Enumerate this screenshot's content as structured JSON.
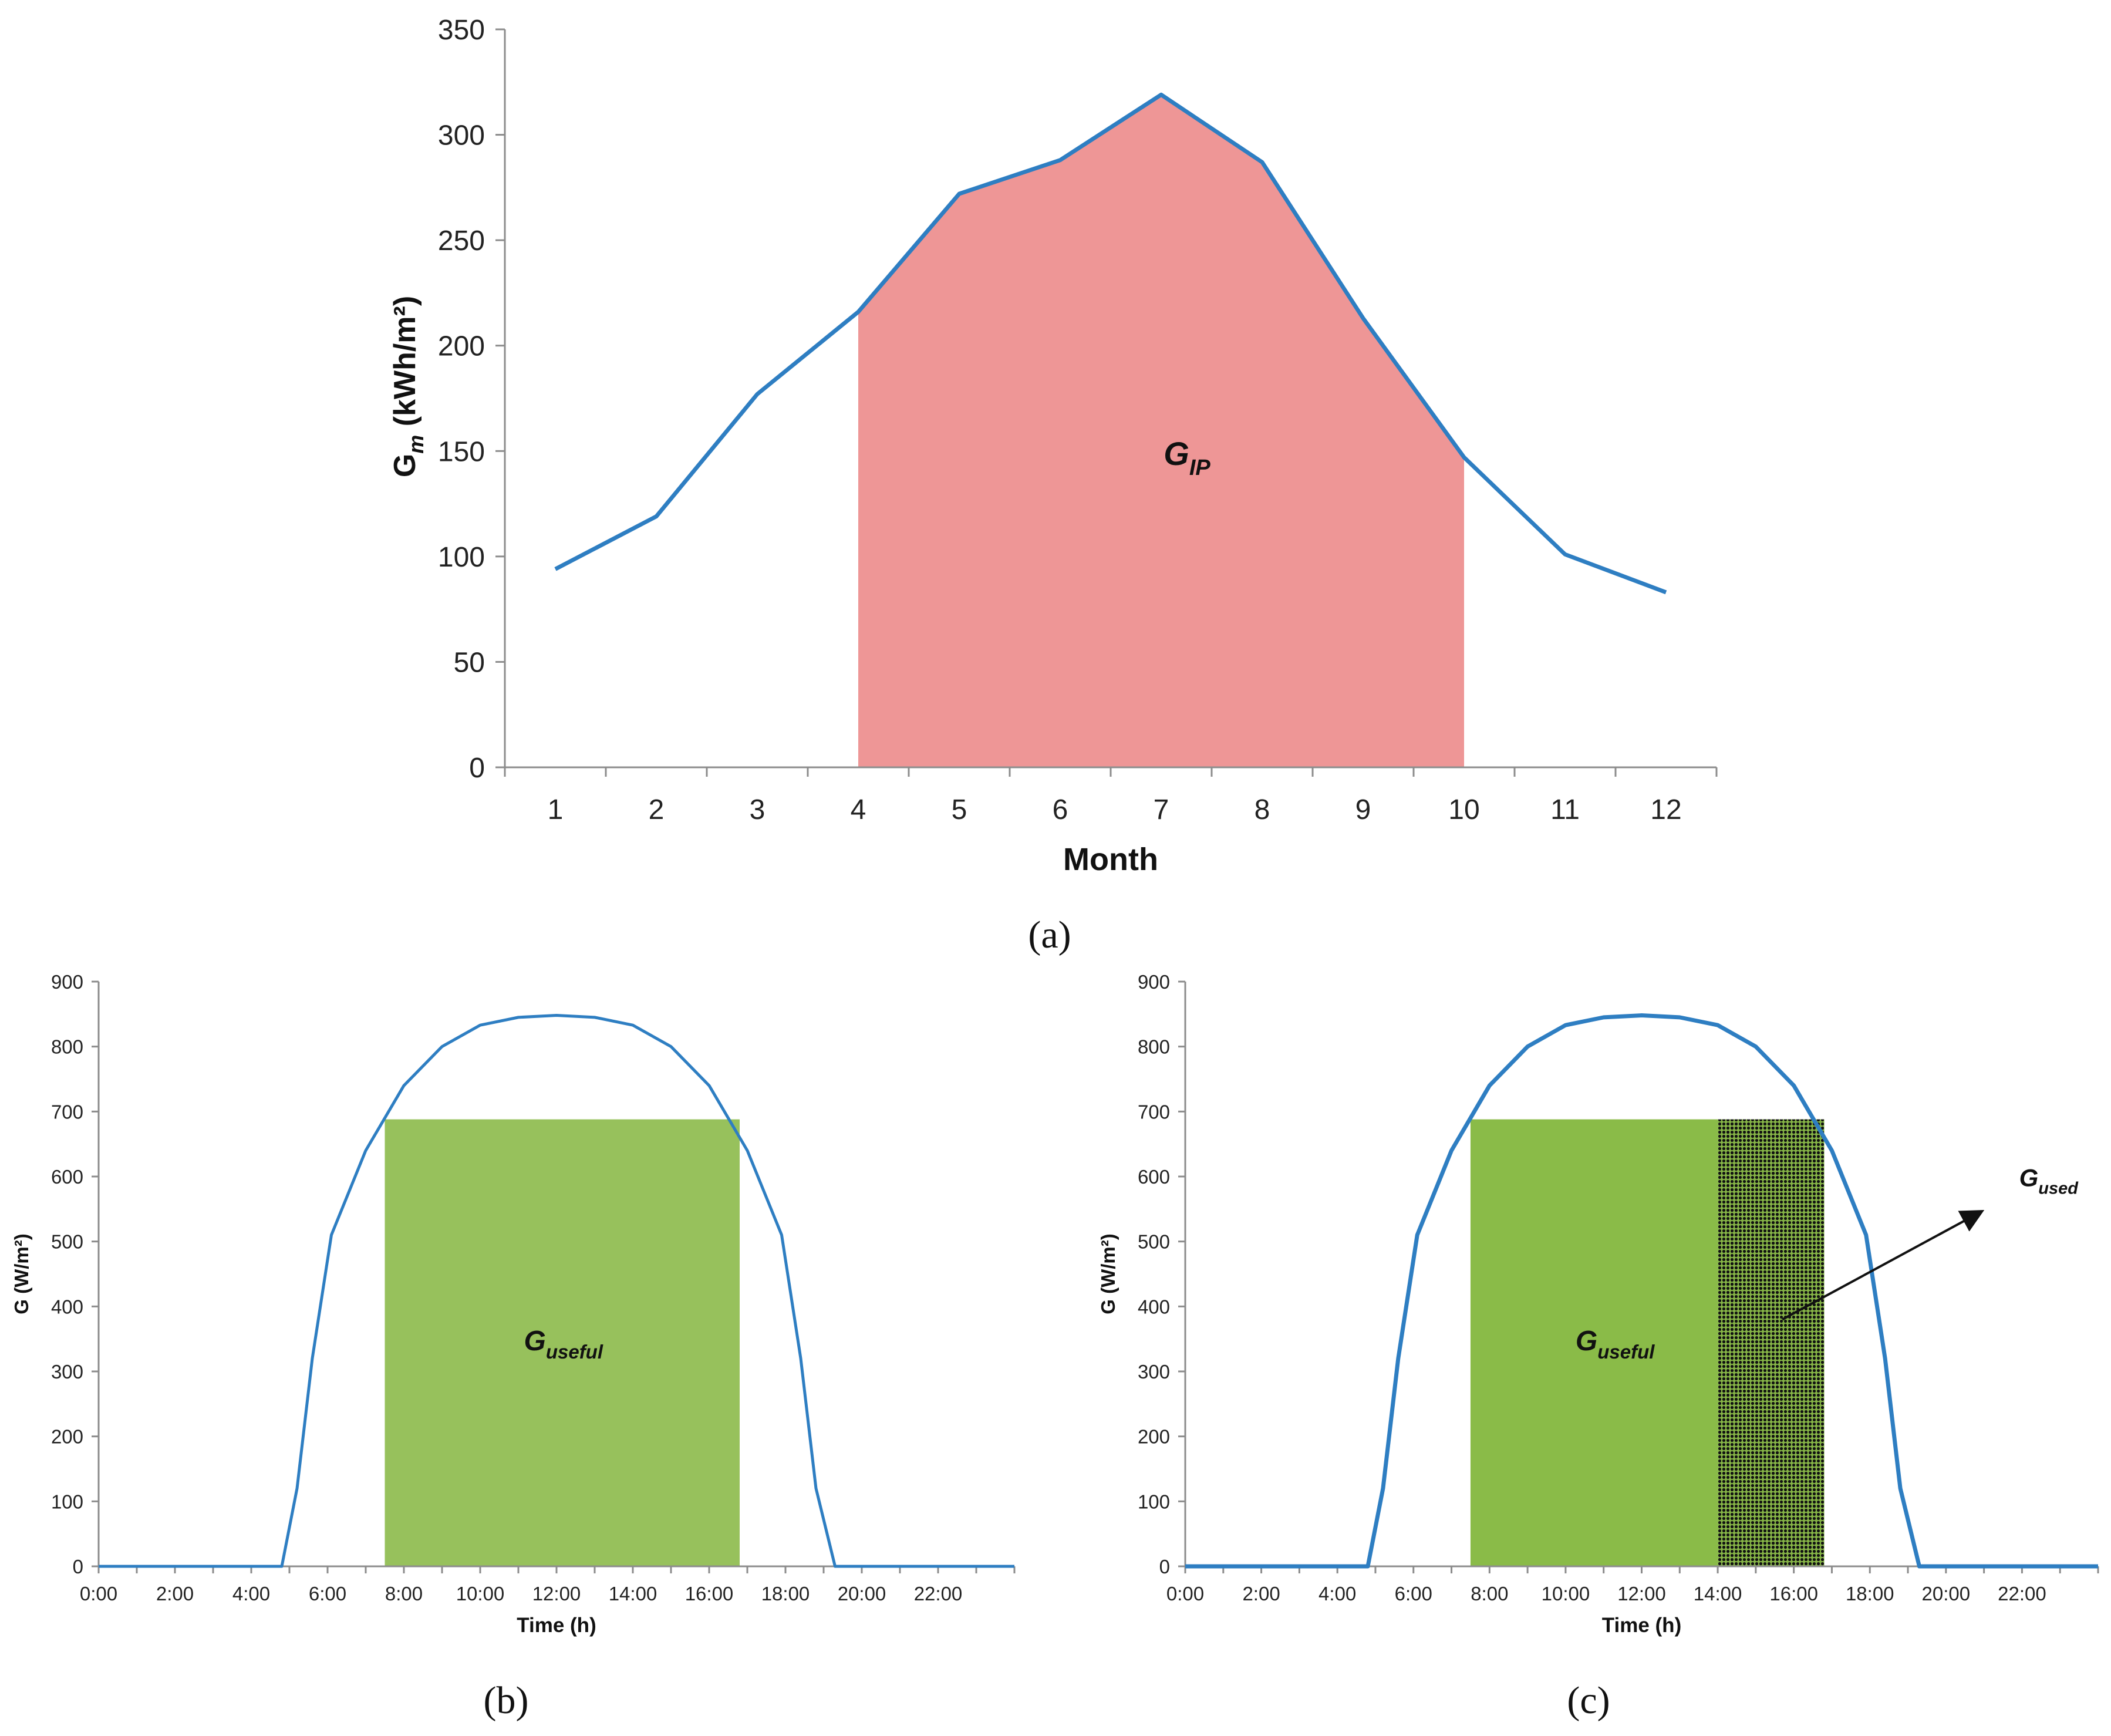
{
  "chart_data": [
    {
      "type": "area",
      "caption": "(a)",
      "xlabel": "Month",
      "ylabel": {
        "main": "G",
        "sub": "m",
        "unit": " (kWh/m²)"
      },
      "x": [
        1,
        2,
        3,
        4,
        5,
        6,
        7,
        8,
        9,
        10,
        11,
        12
      ],
      "xticklabels": [
        "1",
        "2",
        "3",
        "4",
        "5",
        "6",
        "7",
        "8",
        "9",
        "10",
        "11",
        "12"
      ],
      "values": [
        94,
        119,
        177,
        216,
        272,
        288,
        319,
        287,
        213,
        147,
        101,
        83
      ],
      "ylim": [
        0,
        350
      ],
      "yticks": [
        0,
        50,
        100,
        150,
        200,
        250,
        300,
        350
      ],
      "shaded_range": [
        4,
        10
      ],
      "shaded_label": {
        "main": "G",
        "sub": "IP"
      },
      "line_color": "#2e7ec2",
      "fill_color": "#ee9696"
    },
    {
      "type": "area",
      "caption": "(b)",
      "xlabel": "Time (h)",
      "ylabel": "G (W/m²)",
      "xticklabels": [
        "0:00",
        "2:00",
        "4:00",
        "6:00",
        "8:00",
        "10:00",
        "12:00",
        "14:00",
        "16:00",
        "18:00",
        "20:00",
        "22:00"
      ],
      "hours": [
        0,
        4.8,
        5.2,
        5.6,
        6.1,
        7,
        8,
        9,
        10,
        11,
        12,
        13,
        14,
        15,
        16,
        17,
        17.9,
        18.4,
        18.8,
        19.3,
        24
      ],
      "values": [
        0,
        0,
        120,
        320,
        510,
        640,
        740,
        800,
        833,
        845,
        848,
        845,
        833,
        800,
        740,
        640,
        510,
        320,
        120,
        0,
        0
      ],
      "ylim": [
        0,
        900
      ],
      "yticks": [
        0,
        100,
        200,
        300,
        400,
        500,
        600,
        700,
        800,
        900
      ],
      "useful_rect": {
        "start_h": 7.5,
        "end_h": 16.8,
        "level": 688
      },
      "useful_label": {
        "main": "G",
        "sub": "useful"
      },
      "line_color": "#2e7ec2",
      "fill_color": "#97c15c"
    },
    {
      "type": "area",
      "caption": "(c)",
      "xlabel": "Time (h)",
      "ylabel": "G (W/m²)",
      "xticklabels": [
        "0:00",
        "2:00",
        "4:00",
        "6:00",
        "8:00",
        "10:00",
        "12:00",
        "14:00",
        "16:00",
        "18:00",
        "20:00",
        "22:00"
      ],
      "hours": [
        0,
        4.8,
        5.2,
        5.6,
        6.1,
        7,
        8,
        9,
        10,
        11,
        12,
        13,
        14,
        15,
        16,
        17,
        17.9,
        18.4,
        18.8,
        19.3,
        24
      ],
      "values": [
        0,
        0,
        120,
        320,
        510,
        640,
        740,
        800,
        833,
        845,
        848,
        845,
        833,
        800,
        740,
        640,
        510,
        320,
        120,
        0,
        0
      ],
      "ylim": [
        0,
        900
      ],
      "yticks": [
        0,
        100,
        200,
        300,
        400,
        500,
        600,
        700,
        800,
        900
      ],
      "useful_rect": {
        "start_h": 7.5,
        "end_h": 14,
        "level": 688
      },
      "used_rect": {
        "start_h": 14,
        "end_h": 16.8,
        "level": 688
      },
      "useful_label": {
        "main": "G",
        "sub": "useful"
      },
      "used_label": {
        "main": "G",
        "sub": "used"
      },
      "line_color": "#2e7ec2",
      "fill_color": "#8abb48"
    }
  ]
}
